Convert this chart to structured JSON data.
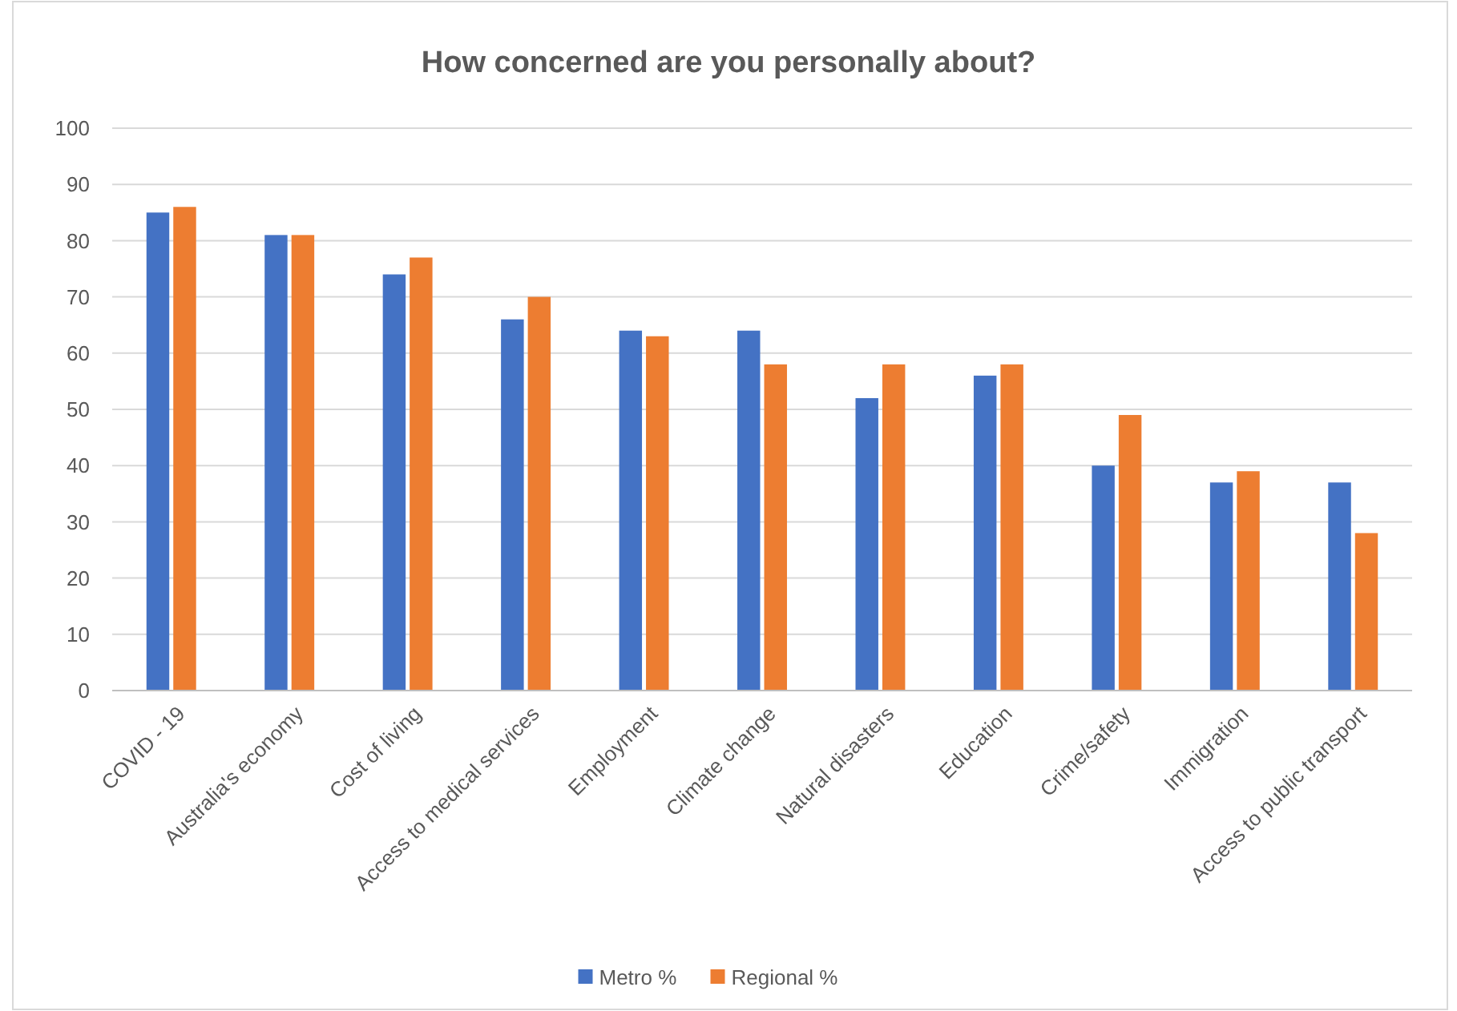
{
  "chart_data": {
    "type": "bar",
    "title": "How concerned are you personally about?",
    "categories": [
      "COVID - 19",
      "Australia's economy",
      "Cost of living",
      "Access to medical services",
      "Employment",
      "Climate change",
      "Natural disasters",
      "Education",
      "Crime/safety",
      "Immigration",
      "Access to public transport"
    ],
    "series": [
      {
        "name": "Metro %",
        "color": "#4472c4",
        "values": [
          85,
          81,
          74,
          66,
          64,
          64,
          52,
          56,
          40,
          37,
          37
        ]
      },
      {
        "name": "Regional %",
        "color": "#ed7d31",
        "values": [
          86,
          81,
          77,
          70,
          63,
          58,
          58,
          58,
          49,
          39,
          28
        ]
      }
    ],
    "ylim": [
      0,
      100
    ],
    "yticks": [
      0,
      10,
      20,
      30,
      40,
      50,
      60,
      70,
      80,
      90,
      100
    ],
    "grid": "y",
    "legend": "bottom"
  }
}
